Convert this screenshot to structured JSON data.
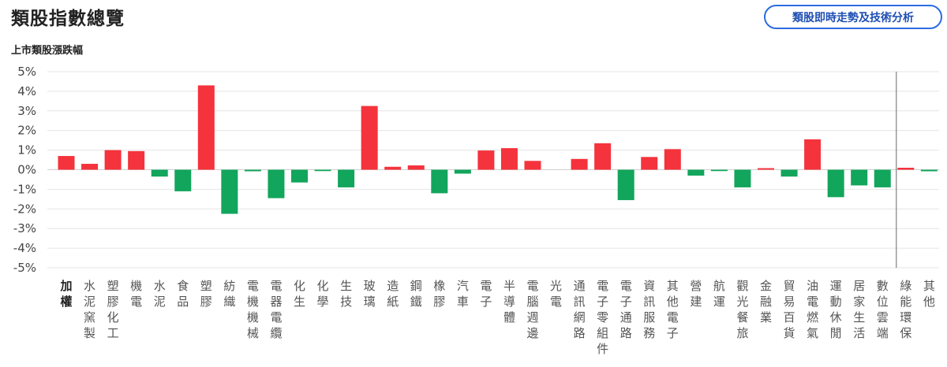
{
  "header": {
    "title": "類股指數總覽",
    "action_label": "類股即時走勢及技術分析"
  },
  "colors": {
    "up": "#f4333c",
    "down": "#12a55c",
    "grid": "#e4e4e4",
    "zero": "#cfcfcf",
    "button_border": "#2d6ce0"
  },
  "chart_data": {
    "type": "bar",
    "title": "上市類股漲跌幅",
    "xlabel": "",
    "ylabel": "",
    "ylim": [
      -5,
      5
    ],
    "ytick_labels": [
      "5%",
      "4%",
      "3%",
      "2%",
      "1%",
      "0%",
      "-1%",
      "-2%",
      "-3%",
      "-4%",
      "-5%"
    ],
    "grid": true,
    "categories": [
      "加權",
      "水泥窯製",
      "塑膠化工",
      "機電",
      "水泥",
      "食品",
      "塑膠",
      "紡織",
      "電機機械",
      "電器電纜",
      "化生",
      "化學",
      "生技",
      "玻璃",
      "造紙",
      "鋼鐵",
      "橡膠",
      "汽車",
      "電子",
      "半導體",
      "電腦週邊",
      "光電",
      "通訊網路",
      "電子零組件",
      "電子通路",
      "資訊服務",
      "其他電子",
      "營建",
      "航運",
      "觀光餐旅",
      "金融業",
      "貿易百貨",
      "油電燃氣",
      "運動休閒",
      "居家生活",
      "數位雲端",
      "綠能環保",
      "其他"
    ],
    "values": [
      0.7,
      0.3,
      1.0,
      0.95,
      -0.35,
      -1.1,
      4.3,
      -2.25,
      -0.08,
      -1.45,
      -0.65,
      -0.07,
      -0.9,
      3.25,
      0.15,
      0.22,
      -1.2,
      -0.2,
      0.98,
      1.1,
      0.45,
      0.0,
      0.55,
      1.35,
      -1.55,
      0.65,
      1.05,
      -0.3,
      -0.07,
      -0.9,
      0.08,
      -0.35,
      1.55,
      -1.4,
      -0.8,
      -0.9,
      0.1,
      -0.08
    ]
  }
}
